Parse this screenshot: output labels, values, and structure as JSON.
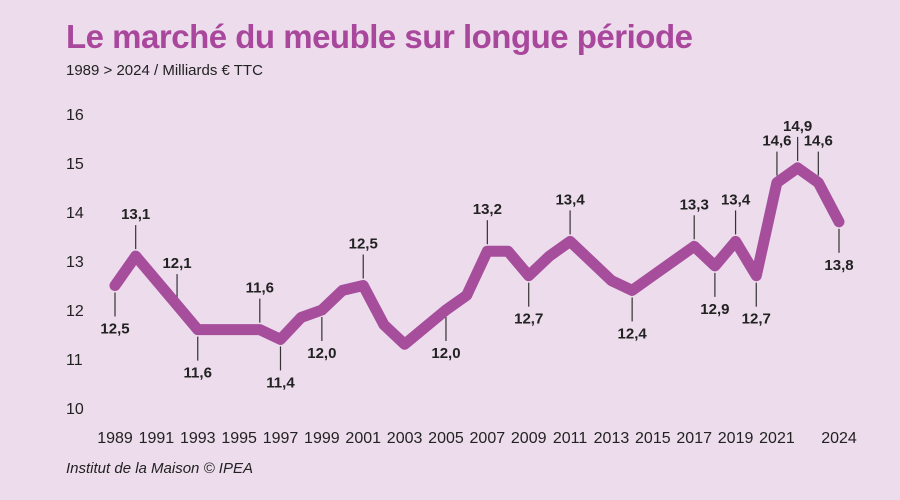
{
  "header": {
    "title": "Le marché du meuble sur longue période",
    "subtitle": "1989 > 2024 / Milliards € TTC"
  },
  "footer": {
    "source": "Institut de la Maison © IPEA"
  },
  "colors": {
    "line": "#a64d9c",
    "background": "#ecdcec",
    "title": "#a8479c"
  },
  "chart_data": {
    "type": "line",
    "title": "Le marché du meuble sur longue période",
    "subtitle": "1989 > 2024 / Milliards € TTC",
    "xlabel": "",
    "ylabel": "Milliards € TTC",
    "ylim": [
      10,
      16
    ],
    "yticks": [
      10,
      11,
      12,
      13,
      14,
      15,
      16
    ],
    "xticks": [
      "1989",
      "1991",
      "1993",
      "1995",
      "1997",
      "1999",
      "2001",
      "2003",
      "2005",
      "2007",
      "2009",
      "2011",
      "2013",
      "2015",
      "2017",
      "2019",
      "2021",
      "2024"
    ],
    "grid": false,
    "series": [
      {
        "name": "Marché du meuble",
        "x": [
          1989,
          1990,
          1991,
          1992,
          1993,
          1994,
          1995,
          1996,
          1997,
          1998,
          1999,
          2000,
          2001,
          2002,
          2003,
          2004,
          2005,
          2006,
          2007,
          2008,
          2009,
          2010,
          2011,
          2012,
          2013,
          2014,
          2015,
          2016,
          2017,
          2018,
          2019,
          2020,
          2021,
          2022,
          2023,
          2024
        ],
        "values": [
          12.5,
          13.1,
          12.6,
          12.1,
          11.6,
          11.6,
          11.6,
          11.6,
          11.4,
          11.85,
          12.0,
          12.4,
          12.5,
          11.7,
          11.3,
          11.65,
          12.0,
          12.3,
          13.2,
          13.2,
          12.7,
          13.1,
          13.4,
          13.0,
          12.6,
          12.4,
          12.7,
          13.0,
          13.3,
          12.9,
          13.4,
          12.7,
          14.6,
          14.9,
          14.6,
          13.8
        ]
      }
    ],
    "annotations": [
      {
        "year": 1989,
        "label": "12,5",
        "value": 12.5,
        "position": "below"
      },
      {
        "year": 1990,
        "label": "13,1",
        "value": 13.1,
        "position": "above"
      },
      {
        "year": 1992,
        "label": "12,1",
        "value": 12.1,
        "position": "above"
      },
      {
        "year": 1993,
        "label": "11,6",
        "value": 11.6,
        "position": "below"
      },
      {
        "year": 1996,
        "label": "11,6",
        "value": 11.6,
        "position": "above"
      },
      {
        "year": 1997,
        "label": "11,4",
        "value": 11.4,
        "position": "below"
      },
      {
        "year": 1999,
        "label": "12,0",
        "value": 12.0,
        "position": "below"
      },
      {
        "year": 2001,
        "label": "12,5",
        "value": 12.5,
        "position": "above"
      },
      {
        "year": 2005,
        "label": "12,0",
        "value": 12.0,
        "position": "below"
      },
      {
        "year": 2007,
        "label": "13,2",
        "value": 13.2,
        "position": "above"
      },
      {
        "year": 2009,
        "label": "12,7",
        "value": 12.7,
        "position": "below"
      },
      {
        "year": 2011,
        "label": "13,4",
        "value": 13.4,
        "position": "above"
      },
      {
        "year": 2014,
        "label": "12,4",
        "value": 12.4,
        "position": "below"
      },
      {
        "year": 2017,
        "label": "13,3",
        "value": 13.3,
        "position": "above"
      },
      {
        "year": 2018,
        "label": "12,9",
        "value": 12.9,
        "position": "below"
      },
      {
        "year": 2019,
        "label": "13,4",
        "value": 13.4,
        "position": "above"
      },
      {
        "year": 2020,
        "label": "12,7",
        "value": 12.7,
        "position": "below"
      },
      {
        "year": 2021,
        "label": "14,6",
        "value": 14.6,
        "position": "above"
      },
      {
        "year": 2022,
        "label": "14,9",
        "value": 14.9,
        "position": "above"
      },
      {
        "year": 2023,
        "label": "14,6",
        "value": 14.6,
        "position": "above"
      },
      {
        "year": 2024,
        "label": "13,8",
        "value": 13.8,
        "position": "below"
      }
    ]
  }
}
